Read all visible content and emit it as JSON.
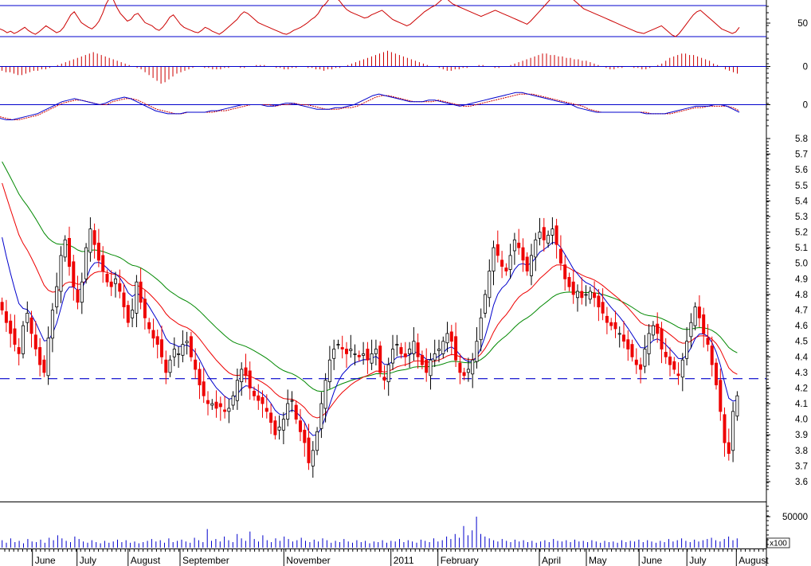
{
  "chart_data": [
    {
      "panel": "rsi",
      "type": "line",
      "ylim": [
        0,
        100
      ],
      "y_tick_labels": [
        "50"
      ],
      "reference_lines": [
        70,
        30
      ],
      "colors": {
        "line": "#cc0000",
        "ref": "#0000cc"
      },
      "values": [
        40,
        38,
        35,
        37,
        34,
        36,
        39,
        42,
        38,
        35,
        33,
        36,
        40,
        44,
        41,
        38,
        35,
        37,
        42,
        50,
        58,
        62,
        55,
        48,
        45,
        42,
        40,
        44,
        50,
        60,
        72,
        80,
        78,
        68,
        60,
        55,
        50,
        52,
        58,
        60,
        54,
        48,
        46,
        44,
        40,
        38,
        42,
        48,
        55,
        58,
        52,
        46,
        42,
        40,
        38,
        36,
        35,
        38,
        42,
        40,
        37,
        35,
        33,
        36,
        40,
        44,
        48,
        52,
        58,
        62,
        60,
        56,
        52,
        48,
        46,
        44,
        42,
        40,
        38,
        36,
        34,
        33,
        35,
        38,
        40,
        42,
        45,
        48,
        52,
        55,
        60,
        68,
        72,
        78,
        82,
        80,
        76,
        70,
        65,
        62,
        60,
        58,
        56,
        54,
        55,
        58,
        60,
        62,
        64,
        60,
        56,
        52,
        50,
        48,
        46,
        44,
        46,
        50,
        54,
        58,
        62,
        65,
        68,
        70,
        74,
        78,
        80,
        76,
        72,
        70,
        68,
        66,
        64,
        62,
        60,
        58,
        56,
        58,
        60,
        62,
        64,
        62,
        60,
        58,
        56,
        54,
        52,
        50,
        48,
        46,
        50,
        55,
        60,
        65,
        70,
        75,
        80,
        84,
        88,
        90,
        86,
        82,
        78,
        74,
        70,
        66,
        64,
        62,
        60,
        58,
        56,
        54,
        52,
        50,
        48,
        46,
        44,
        42,
        40,
        38,
        36,
        35,
        34,
        36,
        38,
        40,
        42,
        44,
        40,
        36,
        32,
        30,
        34,
        40,
        46,
        52,
        58,
        62,
        64,
        60,
        56,
        52,
        48,
        44,
        40,
        38,
        36,
        34,
        36,
        42
      ]
    },
    {
      "panel": "momentum-histogram",
      "type": "bar",
      "y_tick_labels": [
        "0"
      ],
      "colors": {
        "bar": "#cc0000",
        "zero": "#0000cc"
      },
      "values": [
        -3,
        -4,
        -4,
        -5,
        -6,
        -6,
        -5,
        -4,
        -3,
        -3,
        -2,
        -2,
        -1,
        0,
        1,
        2,
        3,
        4,
        5,
        6,
        7,
        8,
        9,
        10,
        9,
        8,
        7,
        6,
        5,
        4,
        3,
        2,
        1,
        0,
        -1,
        -2,
        -4,
        -6,
        -8,
        -10,
        -12,
        -11,
        -9,
        -7,
        -5,
        -4,
        -3,
        -2,
        -1,
        0,
        0,
        -1,
        -1,
        -2,
        -2,
        -2,
        -1,
        -1,
        0,
        0,
        -1,
        -1,
        0,
        0,
        1,
        1,
        1,
        0,
        0,
        -1,
        -1,
        -2,
        -2,
        -1,
        -1,
        0,
        0,
        -1,
        -1,
        -2,
        -2,
        -3,
        -2,
        -2,
        -1,
        -1,
        0,
        1,
        2,
        3,
        4,
        5,
        6,
        7,
        8,
        9,
        10,
        11,
        10,
        9,
        8,
        7,
        6,
        5,
        4,
        3,
        2,
        1,
        0,
        0,
        -1,
        -2,
        -3,
        -3,
        -2,
        -2,
        -1,
        -1,
        0,
        0,
        1,
        1,
        0,
        0,
        -1,
        -1,
        0,
        0,
        1,
        2,
        3,
        4,
        5,
        6,
        7,
        8,
        9,
        9,
        8,
        8,
        7,
        7,
        6,
        6,
        5,
        5,
        4,
        4,
        3,
        2,
        1,
        0,
        -1,
        -2,
        -2,
        -1,
        -1,
        0,
        0,
        -1,
        -1,
        -2,
        -2,
        -1,
        0,
        1,
        2,
        4,
        6,
        7,
        8,
        9,
        9,
        8,
        8,
        7,
        6,
        5,
        4,
        2,
        1,
        0,
        -2,
        -3,
        -4,
        -5
      ]
    },
    {
      "panel": "macd",
      "type": "line",
      "y_tick_labels": [
        "0"
      ],
      "colors": {
        "macd": "#0000cc",
        "signal": "#cc0000",
        "zero": "#0000cc"
      },
      "macd": [
        -9,
        -10,
        -10,
        -9,
        -8,
        -7,
        -6,
        -4,
        -2,
        0,
        2,
        3,
        4,
        3,
        2,
        1,
        0,
        1,
        3,
        4,
        5,
        4,
        2,
        0,
        -2,
        -4,
        -5,
        -6,
        -6,
        -6,
        -5,
        -5,
        -5,
        -5,
        -4,
        -4,
        -3,
        -2,
        -1,
        0,
        0,
        0,
        0,
        -1,
        -1,
        0,
        1,
        1,
        0,
        -1,
        -2,
        -3,
        -3,
        -3,
        -2,
        -2,
        -1,
        0,
        2,
        4,
        6,
        7,
        6,
        5,
        4,
        3,
        2,
        2,
        2,
        3,
        3,
        2,
        1,
        0,
        -1,
        0,
        1,
        2,
        3,
        4,
        5,
        6,
        7,
        8,
        8,
        7,
        6,
        5,
        4,
        3,
        2,
        1,
        0,
        -2,
        -3,
        -4,
        -5,
        -5,
        -5,
        -5,
        -5,
        -5,
        -5,
        -5,
        -6,
        -6,
        -6,
        -6,
        -5,
        -4,
        -3,
        -2,
        -1,
        -1,
        -1,
        0,
        0,
        -1,
        -3,
        -5
      ],
      "signal": [
        -8,
        -9,
        -10,
        -10,
        -9,
        -8,
        -7,
        -5,
        -3,
        -1,
        1,
        2,
        3,
        3,
        2,
        1,
        0,
        0,
        2,
        3,
        4,
        4,
        3,
        1,
        -1,
        -3,
        -4,
        -5,
        -6,
        -6,
        -5,
        -5,
        -5,
        -5,
        -5,
        -4,
        -4,
        -3,
        -2,
        -1,
        0,
        0,
        0,
        0,
        -1,
        0,
        0,
        1,
        0,
        0,
        -1,
        -2,
        -3,
        -3,
        -3,
        -2,
        -2,
        -1,
        1,
        3,
        5,
        6,
        6,
        5,
        4,
        3,
        2,
        2,
        2,
        2,
        3,
        2,
        1,
        0,
        -1,
        -1,
        0,
        1,
        2,
        3,
        4,
        5,
        6,
        7,
        7,
        7,
        6,
        5,
        4,
        3,
        2,
        1,
        0,
        -1,
        -3,
        -4,
        -5,
        -5,
        -5,
        -5,
        -5,
        -5,
        -5,
        -5,
        -6,
        -6,
        -6,
        -6,
        -5,
        -4,
        -3,
        -2,
        -2,
        -1,
        -1,
        -1,
        -1,
        -2,
        -4
      ]
    },
    {
      "panel": "price",
      "type": "candlestick",
      "ylim": [
        3.55,
        5.85
      ],
      "y_tick_labels": [
        "5.8",
        "5.7",
        "5.6",
        "5.5",
        "5.4",
        "5.3",
        "5.2",
        "5.1",
        "5.0",
        "4.9",
        "4.8",
        "4.7",
        "4.6",
        "4.5",
        "4.4",
        "4.3",
        "4.2",
        "4.1",
        "4.0",
        "3.9",
        "3.8",
        "3.7",
        "3.6"
      ],
      "y_tick_values": [
        5.8,
        5.7,
        5.6,
        5.5,
        5.4,
        5.3,
        5.2,
        5.1,
        5.0,
        4.9,
        4.8,
        4.7,
        4.6,
        4.5,
        4.4,
        4.3,
        4.2,
        4.1,
        4.0,
        3.9,
        3.8,
        3.7,
        3.6
      ],
      "horizontal_dashed_line": 4.26,
      "colors": {
        "up": "#000000",
        "down": "#ee0000",
        "ma_short": "#0000cc",
        "ma_mid": "#ee0000",
        "ma_long": "#008800",
        "dashed": "#0000cc"
      },
      "close": [
        4.7,
        4.62,
        4.55,
        4.48,
        4.42,
        4.6,
        4.68,
        4.55,
        4.45,
        4.35,
        4.3,
        4.52,
        4.7,
        4.85,
        5.05,
        5.15,
        4.98,
        4.85,
        4.75,
        4.88,
        5.1,
        5.22,
        5.12,
        5.02,
        4.95,
        4.88,
        4.85,
        4.9,
        4.82,
        4.72,
        4.62,
        4.7,
        4.88,
        4.75,
        4.65,
        4.58,
        4.52,
        4.48,
        4.4,
        4.3,
        4.38,
        4.45,
        4.42,
        4.48,
        4.5,
        4.4,
        4.32,
        4.22,
        4.15,
        4.1,
        4.1,
        4.07,
        4.08,
        4.05,
        4.07,
        4.15,
        4.25,
        4.32,
        4.28,
        4.2,
        4.15,
        4.12,
        4.1,
        4.05,
        3.98,
        3.9,
        3.95,
        4.0,
        4.1,
        4.12,
        4.0,
        3.92,
        3.85,
        3.72,
        3.8,
        3.92,
        4.1,
        4.25,
        4.38,
        4.45,
        4.48,
        4.45,
        4.42,
        4.45,
        4.42,
        4.4,
        4.42,
        4.38,
        4.42,
        4.45,
        4.3,
        4.25,
        4.35,
        4.45,
        4.48,
        4.42,
        4.4,
        4.45,
        4.5,
        4.4,
        4.35,
        4.3,
        4.38,
        4.42,
        4.45,
        4.5,
        4.55,
        4.5,
        4.38,
        4.3,
        4.28,
        4.32,
        4.38,
        4.5,
        4.65,
        4.8,
        4.95,
        5.1,
        5.05,
        4.98,
        4.95,
        5.05,
        5.15,
        5.1,
        5.02,
        4.95,
        5.05,
        5.15,
        5.2,
        5.15,
        5.18,
        5.22,
        5.12,
        5.0,
        4.9,
        4.85,
        4.8,
        4.82,
        4.78,
        4.8,
        4.82,
        4.78,
        4.72,
        4.68,
        4.62,
        4.6,
        4.58,
        4.55,
        4.5,
        4.45,
        4.4,
        4.35,
        4.32,
        4.45,
        4.55,
        4.6,
        4.55,
        4.45,
        4.4,
        4.35,
        4.32,
        4.28,
        4.38,
        4.5,
        4.62,
        4.72,
        4.65,
        4.55,
        4.48,
        4.35,
        4.22,
        4.05,
        3.85,
        3.78,
        4.05,
        4.15
      ]
    },
    {
      "panel": "volume",
      "type": "bar",
      "y_tick_labels": [
        "50000"
      ],
      "y_tick_values": [
        50000
      ],
      "unit_label": "x100",
      "colors": {
        "bar": "#0000cc"
      },
      "values": [
        12000,
        8000,
        15000,
        9000,
        11000,
        7000,
        14000,
        10000,
        9000,
        13000,
        8000,
        16000,
        12000,
        20000,
        15000,
        11000,
        9000,
        18000,
        14000,
        10000,
        8000,
        12000,
        9000,
        7000,
        11000,
        8000,
        10000,
        13000,
        9000,
        12000,
        8000,
        10000,
        7000,
        9000,
        11000,
        14000,
        10000,
        12000,
        8000,
        15000,
        9000,
        11000,
        13000,
        10000,
        8000,
        16000,
        12000,
        9000,
        30000,
        11000,
        14000,
        10000,
        18000,
        12000,
        9000,
        22000,
        15000,
        11000,
        26000,
        14000,
        10000,
        20000,
        12000,
        9000,
        15000,
        11000,
        18000,
        14000,
        10000,
        12000,
        16000,
        11000,
        9000,
        13000,
        10000,
        15000,
        12000,
        8000,
        11000,
        9000,
        14000,
        10000,
        8000,
        12000,
        9000,
        11000,
        7000,
        10000,
        9000,
        12000,
        8000,
        11000,
        10000,
        14000,
        9000,
        12000,
        10000,
        8000,
        13000,
        11000,
        9000,
        15000,
        10000,
        12000,
        18000,
        14000,
        22000,
        16000,
        35000,
        20000,
        28000,
        50000,
        22000,
        18000,
        15000,
        12000,
        10000,
        14000,
        11000,
        9000,
        13000,
        10000,
        12000,
        9000,
        11000,
        8000,
        10000,
        12000,
        9000,
        14000,
        11000,
        10000,
        12000,
        9000,
        13000,
        10000,
        11000,
        9000,
        12000,
        10000,
        8000,
        11000,
        9000,
        10000,
        8000,
        12000,
        9000,
        11000,
        10000,
        13000,
        9000,
        12000,
        10000,
        8000,
        11000,
        9000,
        14000,
        10000,
        12000,
        15000,
        11000,
        9000,
        13000,
        10000,
        12000,
        14000,
        16000,
        12000,
        10000,
        14000,
        18000,
        12000,
        15000
      ]
    },
    {
      "panel": "x-axis",
      "type": "table",
      "months": [
        {
          "label": "June",
          "pos": 0.04
        },
        {
          "label": "July",
          "pos": 0.095
        },
        {
          "label": "August",
          "pos": 0.158
        },
        {
          "label": "September",
          "pos": 0.222
        },
        {
          "label": "November",
          "pos": 0.35
        },
        {
          "label": "2011",
          "pos": 0.482
        },
        {
          "label": "February",
          "pos": 0.54
        },
        {
          "label": "April",
          "pos": 0.665
        },
        {
          "label": "May",
          "pos": 0.723
        },
        {
          "label": "June",
          "pos": 0.788
        },
        {
          "label": "July",
          "pos": 0.847
        },
        {
          "label": "August",
          "pos": 0.908
        }
      ]
    }
  ]
}
